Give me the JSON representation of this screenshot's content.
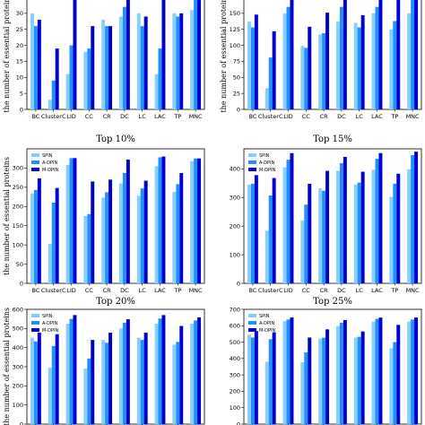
{
  "colors": {
    "SPIN": "#87CEFA",
    "A-DPIN": "#1E90FF",
    "M-DPIN": "#0000CD"
  },
  "chart_data": [
    {
      "type": "bar",
      "title": "",
      "ylabel": "the number of essential proteins",
      "categories": [
        "BC",
        "ClusterC",
        "LID",
        "CC",
        "CR",
        "DC",
        "LC",
        "LAC",
        "TP",
        "MNC"
      ],
      "ylim": [
        0,
        35
      ],
      "yticks": [
        0,
        5,
        10,
        15,
        20,
        25,
        30
      ],
      "series": [
        {
          "name": "SPIN",
          "values": [
            30,
            3,
            11,
            18,
            28,
            29,
            30,
            11,
            30,
            31
          ]
        },
        {
          "name": "A-DPIN",
          "values": [
            26,
            9,
            20,
            19,
            26,
            32,
            26,
            19,
            29,
            35
          ]
        },
        {
          "name": "M-DPIN",
          "values": [
            28,
            19,
            35,
            26,
            26,
            35,
            29,
            35,
            30,
            35
          ]
        }
      ]
    },
    {
      "type": "bar",
      "title": "",
      "ylabel": "the number of essential proteins",
      "categories": [
        "BC",
        "ClusterC",
        "LID",
        "CC",
        "CR",
        "DC",
        "LC",
        "LAC",
        "TP",
        "MNC"
      ],
      "ylim": [
        0,
        175
      ],
      "yticks": [
        0,
        25,
        50,
        75,
        100,
        125,
        150
      ],
      "series": [
        {
          "name": "SPIN",
          "values": [
            137,
            33,
            150,
            99,
            117,
            137,
            135,
            150,
            125,
            150
          ]
        },
        {
          "name": "A-DPIN",
          "values": [
            128,
            81,
            160,
            96,
            119,
            160,
            128,
            160,
            138,
            175
          ]
        },
        {
          "name": "M-DPIN",
          "values": [
            148,
            122,
            175,
            129,
            151,
            175,
            147,
            175,
            175,
            175
          ]
        }
      ]
    },
    {
      "type": "bar",
      "title": "Top 10%",
      "ylabel": "the number of essential proteins",
      "categories": [
        "BC",
        "ClusterC",
        "LID",
        "CC",
        "CR",
        "DC",
        "LC",
        "LAC",
        "TP",
        "MNC"
      ],
      "ylim": [
        0,
        350
      ],
      "yticks": [
        0,
        50,
        100,
        150,
        200,
        250,
        300
      ],
      "legend": [
        "SPIN",
        "A-DPIN",
        "M-DPIN"
      ],
      "series": [
        {
          "name": "SPIN",
          "values": [
            233,
            103,
            308,
            175,
            223,
            260,
            228,
            305,
            238,
            318
          ]
        },
        {
          "name": "A-DPIN",
          "values": [
            243,
            210,
            326,
            180,
            237,
            287,
            247,
            328,
            258,
            325
          ]
        },
        {
          "name": "M-DPIN",
          "values": [
            273,
            248,
            326,
            265,
            270,
            322,
            267,
            330,
            287,
            325
          ]
        }
      ]
    },
    {
      "type": "bar",
      "title": "Top 15%",
      "ylabel": "",
      "categories": [
        "BC",
        "ClusterC",
        "LID",
        "CC",
        "CR",
        "DC",
        "LC",
        "LAC",
        "TP",
        "MNC"
      ],
      "ylim": [
        0,
        470
      ],
      "yticks": [
        0,
        100,
        200,
        300,
        400
      ],
      "legend": [
        "SPIN",
        "A-DPIN",
        "M-DPIN"
      ],
      "series": [
        {
          "name": "SPIN",
          "values": [
            345,
            183,
            405,
            220,
            332,
            393,
            345,
            397,
            302,
            398
          ]
        },
        {
          "name": "A-DPIN",
          "values": [
            348,
            307,
            432,
            275,
            323,
            420,
            352,
            435,
            348,
            448
          ]
        },
        {
          "name": "M-DPIN",
          "values": [
            378,
            368,
            455,
            348,
            393,
            442,
            390,
            455,
            383,
            460
          ]
        }
      ]
    },
    {
      "type": "bar",
      "title": "Top 20%",
      "ylabel": "the number of essential proteins",
      "categories": [
        "BC",
        "ClusterC",
        "LID",
        "CC",
        "CR",
        "DC",
        "LC",
        "LAC",
        "TP",
        "MNC"
      ],
      "ylim": [
        0,
        600
      ],
      "yticks": [
        0,
        100,
        200,
        300,
        400,
        500,
        600
      ],
      "legend": [
        "SPIN",
        "A-DPIN",
        "M-DPIN"
      ],
      "series": [
        {
          "name": "SPIN",
          "values": [
            452,
            295,
            525,
            290,
            440,
            500,
            452,
            525,
            415,
            525
          ]
        },
        {
          "name": "A-DPIN",
          "values": [
            432,
            408,
            550,
            343,
            425,
            530,
            440,
            552,
            430,
            542
          ]
        },
        {
          "name": "M-DPIN",
          "values": [
            478,
            470,
            570,
            440,
            478,
            548,
            478,
            570,
            513,
            558
          ]
        }
      ]
    },
    {
      "type": "bar",
      "title": "Top 25%",
      "ylabel": "",
      "categories": [
        "BC",
        "ClusterC",
        "LID",
        "CC",
        "CR",
        "DC",
        "LC",
        "LAC",
        "TP",
        "MNC"
      ],
      "ylim": [
        0,
        700
      ],
      "yticks": [
        0,
        100,
        200,
        300,
        400,
        500,
        600,
        700
      ],
      "legend": [
        "SPIN",
        "A-DPIN",
        "M-DPIN"
      ],
      "series": [
        {
          "name": "SPIN",
          "values": [
            545,
            380,
            628,
            378,
            520,
            598,
            528,
            625,
            462,
            625
          ]
        },
        {
          "name": "A-DPIN",
          "values": [
            528,
            518,
            638,
            438,
            527,
            618,
            532,
            642,
            500,
            638
          ]
        },
        {
          "name": "M-DPIN",
          "values": [
            568,
            560,
            650,
            528,
            578,
            635,
            565,
            650,
            605,
            650
          ]
        }
      ]
    }
  ]
}
